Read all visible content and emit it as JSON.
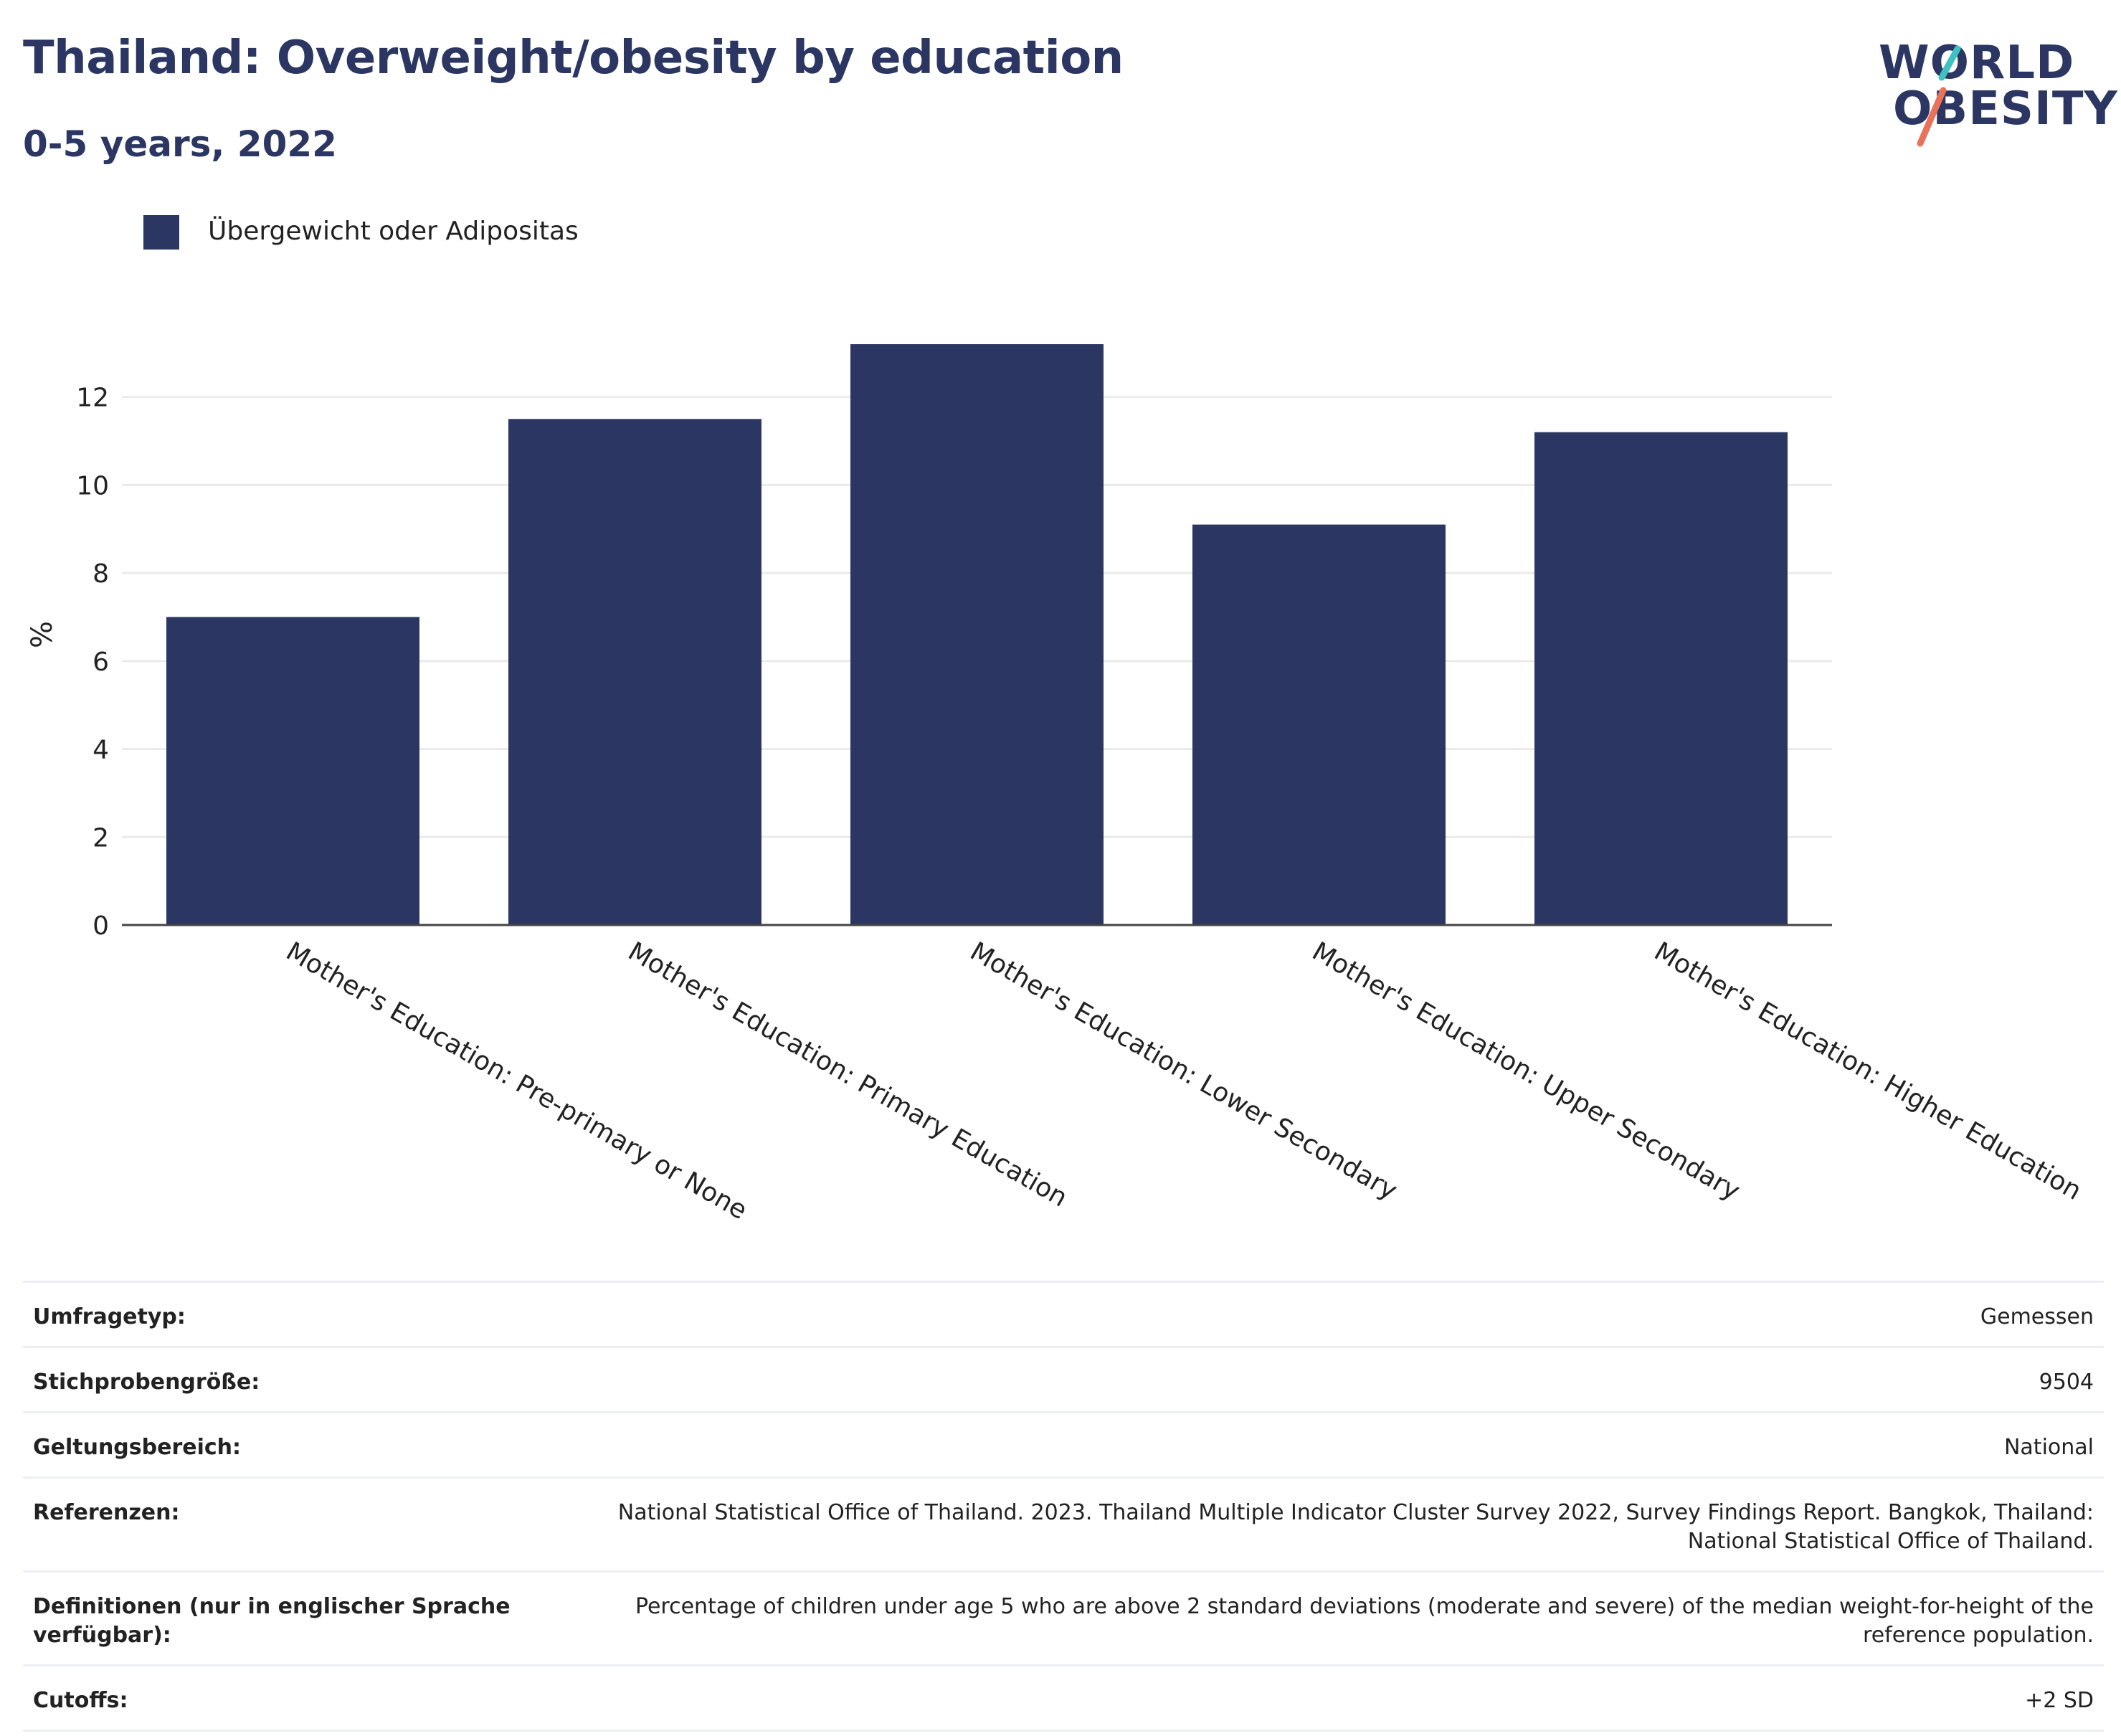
{
  "header": {
    "title": "Thailand: Overweight/obesity by education",
    "subtitle": "0-5 years, 2022"
  },
  "logo": {
    "line1": "WORLD",
    "line2": "OBESITY",
    "accent_colors": [
      "#3ec1c1",
      "#e8735a"
    ]
  },
  "legend": {
    "label": "Übergewicht oder Adipositas"
  },
  "colors": {
    "bar": "#2b3662",
    "grid": "#ebebeb",
    "axis": "#444444",
    "text": "#2b3662"
  },
  "chart_data": {
    "type": "bar",
    "title": "Thailand: Overweight/obesity by education",
    "subtitle": "0-5 years, 2022",
    "categories": [
      "Mother's Education: Pre-primary or None",
      "Mother's Education: Primary Education",
      "Mother's Education: Lower Secondary",
      "Mother's Education: Upper Secondary",
      "Mother's Education: Higher Education"
    ],
    "series": [
      {
        "name": "Übergewicht oder Adipositas",
        "values": [
          7.0,
          11.5,
          13.2,
          9.1,
          11.2
        ]
      }
    ],
    "ylabel": "%",
    "xlabel": "",
    "ylim": [
      0,
      13.2
    ],
    "yticks": [
      0,
      2,
      4,
      6,
      8,
      10,
      12
    ],
    "grid": true,
    "legend_position": "top-left"
  },
  "metadata": [
    {
      "key": "Umfragetyp:",
      "value": "Gemessen"
    },
    {
      "key": "Stichprobengröße:",
      "value": "9504"
    },
    {
      "key": "Geltungsbereich:",
      "value": "National"
    },
    {
      "key": "Referenzen:",
      "value": "National Statistical Office of Thailand. 2023. Thailand Multiple Indicator Cluster Survey 2022, Survey Findings Report. Bangkok, Thailand: National Statistical Office of Thailand."
    },
    {
      "key": "Definitionen (nur in englischer Sprache verfügbar):",
      "value": "Percentage of children under age 5 who are above 2 standard deviations (moderate and severe) of the median weight-for-height of the reference population."
    },
    {
      "key": "Cutoffs:",
      "value": "+2 SD"
    }
  ]
}
